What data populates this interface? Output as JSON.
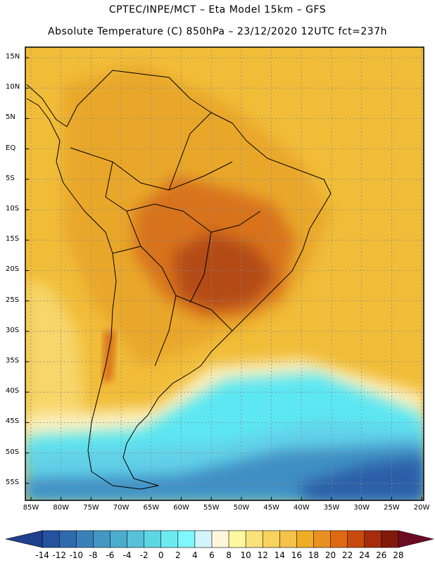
{
  "header": {
    "line1": "CPTEC/INPE/MCT –  Eta Model 15km – GFS",
    "line2": "Absolute Temperature (C) 850hPa – 23/12/2020 12UTC fct=237h"
  },
  "map": {
    "lat_labels": [
      "15N",
      "10N",
      "5N",
      "EQ",
      "5S",
      "10S",
      "15S",
      "20S",
      "25S",
      "30S",
      "35S",
      "40S",
      "45S",
      "50S",
      "55S"
    ],
    "lon_labels": [
      "85W",
      "80W",
      "75W",
      "70W",
      "65W",
      "60W",
      "55W",
      "50W",
      "45W",
      "40W",
      "35W",
      "30W",
      "25W",
      "20W"
    ]
  },
  "colorbar": {
    "ticks": [
      "-14",
      "-12",
      "-10",
      "-8",
      "-6",
      "-4",
      "-2",
      "0",
      "2",
      "4",
      "6",
      "8",
      "10",
      "12",
      "14",
      "16",
      "18",
      "20",
      "22",
      "24",
      "26",
      "28"
    ],
    "colors": [
      "#1f3f8f",
      "#24529f",
      "#2f6aad",
      "#3a81ba",
      "#4397c3",
      "#4caccd",
      "#56c1d8",
      "#5fd6e4",
      "#6bebf0",
      "#7ff7fb",
      "#d4f4fb",
      "#fdf6dc",
      "#fdf8a0",
      "#f9e27a",
      "#f7d25e",
      "#f5c24a",
      "#efad25",
      "#e89020",
      "#df6a10",
      "#c84a0e",
      "#a52c0d",
      "#801b0b",
      "#6d0b22"
    ],
    "field_colors": {
      "hot_core": "#b44b12",
      "hot": "#d8731b",
      "warm": "#e9a72b",
      "mild": "#f1bd38",
      "cool_land": "#f7d66b",
      "pale": "#fdf0c0",
      "cyan": "#5ce7f3",
      "light_blue": "#62d1e8",
      "blue": "#3f8fc4",
      "deep_blue": "#2b5fa8"
    }
  }
}
